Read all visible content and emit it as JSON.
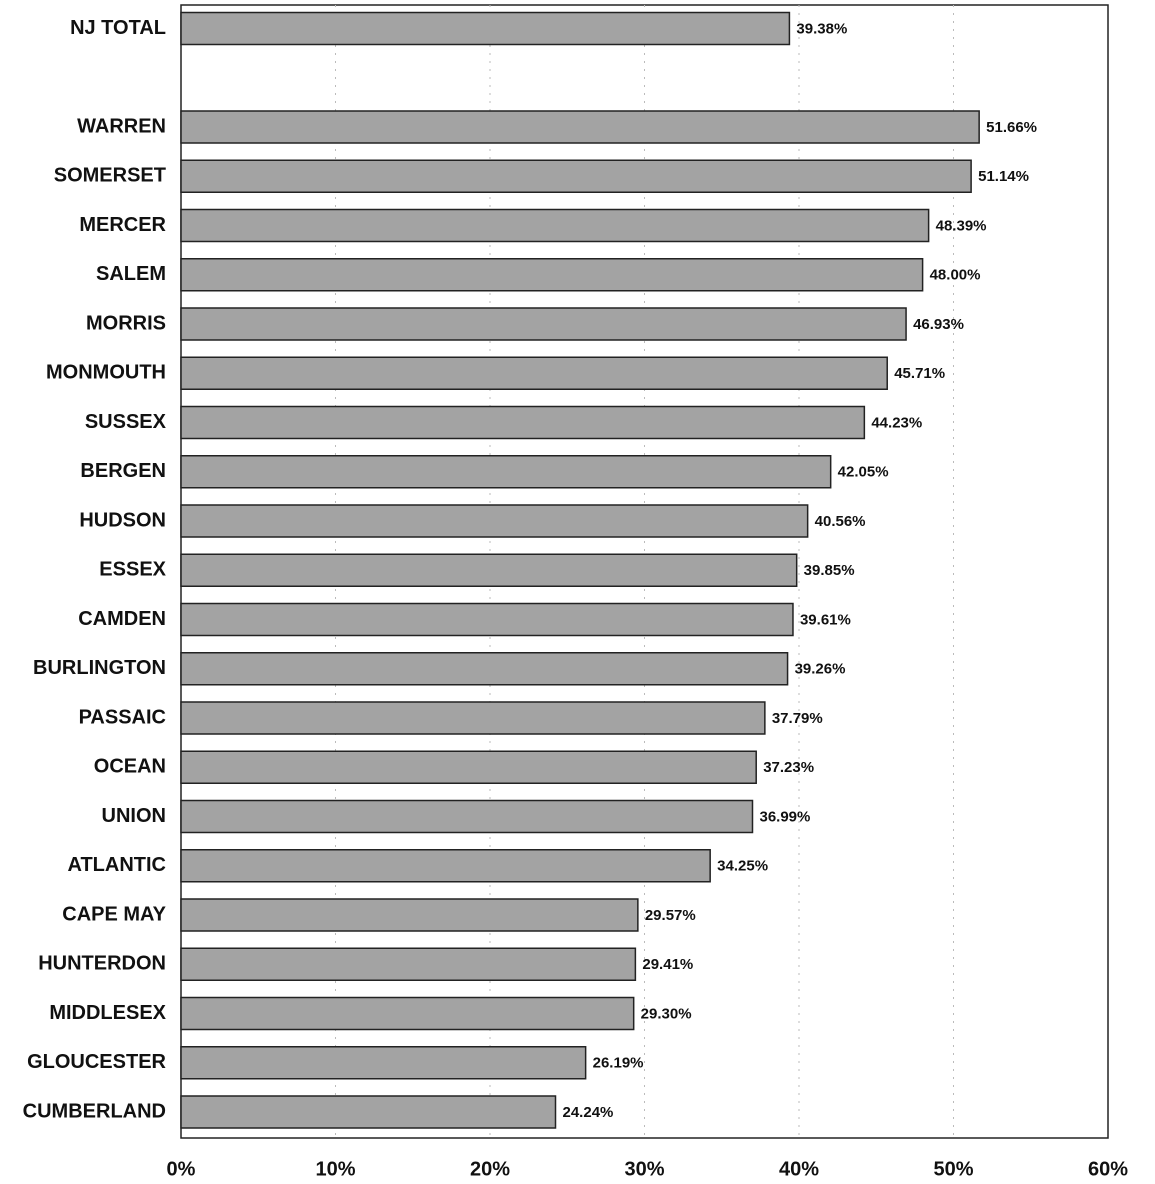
{
  "chart_data": {
    "type": "bar",
    "orientation": "horizontal",
    "categories": [
      "NJ TOTAL",
      null,
      "WARREN",
      "SOMERSET",
      "MERCER",
      "SALEM",
      "MORRIS",
      "MONMOUTH",
      "SUSSEX",
      "BERGEN",
      "HUDSON",
      "ESSEX",
      "CAMDEN",
      "BURLINGTON",
      "PASSAIC",
      "OCEAN",
      "UNION",
      "ATLANTIC",
      "CAPE MAY",
      "HUNTERDON",
      "MIDDLESEX",
      "GLOUCESTER",
      "CUMBERLAND"
    ],
    "values": [
      39.38,
      null,
      51.66,
      51.14,
      48.39,
      48.0,
      46.93,
      45.71,
      44.23,
      42.05,
      40.56,
      39.85,
      39.61,
      39.26,
      37.79,
      37.23,
      36.99,
      34.25,
      29.57,
      29.41,
      29.3,
      26.19,
      24.24
    ],
    "value_labels": [
      "39.38%",
      null,
      "51.66%",
      "51.14%",
      "48.39%",
      "48.00%",
      "46.93%",
      "45.71%",
      "44.23%",
      "42.05%",
      "40.56%",
      "39.85%",
      "39.61%",
      "39.26%",
      "37.79%",
      "37.23%",
      "36.99%",
      "34.25%",
      "29.57%",
      "29.41%",
      "29.30%",
      "26.19%",
      "24.24%"
    ],
    "color": "#a3a3a3",
    "xlim": [
      0,
      60
    ],
    "xticks": [
      {
        "value": 0,
        "label": "0%"
      },
      {
        "value": 10,
        "label": "10%"
      },
      {
        "value": 20,
        "label": "20%"
      },
      {
        "value": 30,
        "label": "30%"
      },
      {
        "value": 40,
        "label": "40%"
      },
      {
        "value": 50,
        "label": "50%"
      },
      {
        "value": 60,
        "label": "60%"
      }
    ],
    "grid": true
  }
}
